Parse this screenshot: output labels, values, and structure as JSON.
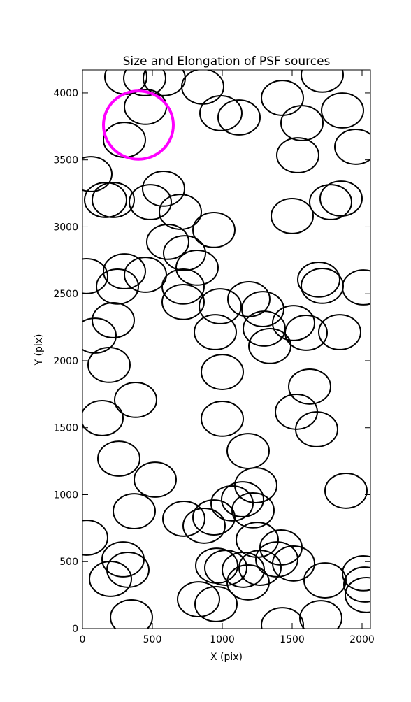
{
  "chart_data": {
    "type": "ellipses",
    "title": "Size and Elongation of PSF sources",
    "xlabel": "X (pix)",
    "ylabel": "Y (pix)",
    "x": [
      310,
      445,
      585,
      860,
      1715,
      1430,
      990,
      1120,
      1860,
      1570,
      450,
      300,
      1540,
      1955,
      60,
      165,
      220,
      485,
      580,
      700,
      1775,
      1850,
      1500,
      940,
      610,
      730,
      820,
      30,
      300,
      450,
      250,
      720,
      720,
      985,
      1190,
      1290,
      1690,
      1715,
      2010,
      1510,
      1600,
      1840,
      1300,
      1340,
      950,
      90,
      190,
      220,
      1000,
      1625,
      380,
      140,
      1530,
      1675,
      1000,
      1185,
      260,
      520,
      1240,
      1885,
      370,
      725,
      870,
      940,
      1070,
      1145,
      1220,
      1250,
      30,
      290,
      325,
      200,
      1420,
      1510,
      1390,
      1270,
      1150,
      1185,
      960,
      1025,
      830,
      955,
      1735,
      2010,
      2020,
      2030,
      1430,
      1705,
      350
    ],
    "y": [
      4120,
      4110,
      4110,
      4047,
      4136,
      3963,
      3849,
      3817,
      3869,
      3775,
      3896,
      3650,
      3535,
      3598,
      3394,
      3201,
      3201,
      3185,
      3285,
      3112,
      3185,
      3211,
      3081,
      2977,
      2888,
      2804,
      2695,
      2632,
      2668,
      2642,
      2554,
      2554,
      2439,
      2407,
      2460,
      2386,
      2606,
      2559,
      2548,
      2282,
      2209,
      2214,
      2240,
      2110,
      2214,
      2188,
      1969,
      2303,
      1916,
      1807,
      1708,
      1572,
      1619,
      1488,
      1567,
      1326,
      1269,
      1112,
      1070,
      1029,
      877,
      820,
      768,
      830,
      935,
      966,
      883,
      663,
      679,
      517,
      439,
      371,
      606,
      486,
      517,
      454,
      439,
      345,
      470,
      454,
      219,
      183,
      360,
      413,
      329,
      251,
      26,
      78,
      84
    ],
    "ellipse_width": 300,
    "ellipse_height": 260,
    "color": "#000000",
    "highlight": {
      "x": 400,
      "y": 3760,
      "width": 500,
      "height": 510,
      "color": "#ff00ff"
    },
    "xlim": [
      0,
      2060
    ],
    "ylim": [
      0,
      4172
    ],
    "xticks": [
      0,
      500,
      1000,
      1500,
      2000
    ],
    "yticks": [
      0,
      500,
      1000,
      1500,
      2000,
      2500,
      3000,
      3500,
      4000
    ]
  }
}
